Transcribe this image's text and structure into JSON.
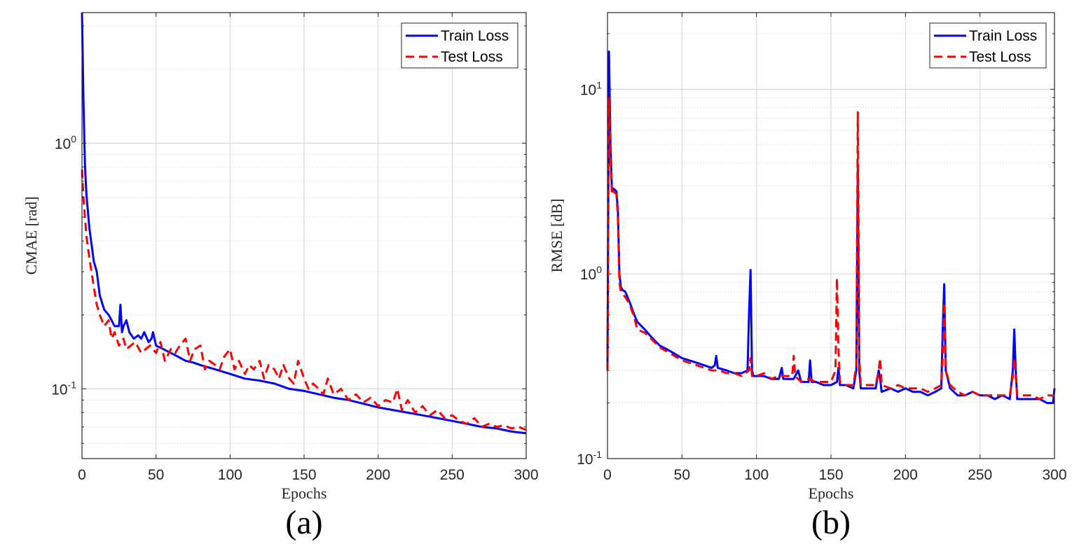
{
  "chart_data": [
    {
      "type": "line",
      "panel_label": "(a)",
      "xlabel": "Epochs",
      "ylabel": "CMAE [rad]",
      "xlim": [
        0,
        300
      ],
      "ylim": [
        0.052,
        3.4
      ],
      "yscale": "log",
      "grid": true,
      "legend_position": "top-right",
      "xticks": [
        0,
        50,
        100,
        150,
        200,
        250,
        300
      ],
      "yticks": [
        {
          "value": 1,
          "base": "10",
          "exp": "0"
        },
        {
          "value": 0.1,
          "base": "10",
          "exp": "-1"
        }
      ],
      "series": [
        {
          "name": "Train Loss",
          "color": "#0000ff",
          "style": "solid",
          "x": [
            0,
            1,
            2,
            3,
            5,
            8,
            10,
            12,
            15,
            18,
            20,
            22,
            25,
            26,
            27,
            28,
            30,
            32,
            35,
            38,
            40,
            42,
            45,
            47,
            48,
            50,
            55,
            60,
            65,
            70,
            75,
            80,
            90,
            100,
            110,
            120,
            130,
            140,
            150,
            160,
            170,
            180,
            190,
            200,
            210,
            220,
            230,
            240,
            250,
            260,
            270,
            280,
            290,
            300
          ],
          "values": [
            3.4,
            1.5,
            0.82,
            0.62,
            0.45,
            0.33,
            0.3,
            0.24,
            0.21,
            0.2,
            0.19,
            0.18,
            0.18,
            0.22,
            0.17,
            0.18,
            0.19,
            0.17,
            0.16,
            0.165,
            0.16,
            0.17,
            0.155,
            0.16,
            0.17,
            0.15,
            0.145,
            0.14,
            0.135,
            0.13,
            0.128,
            0.125,
            0.12,
            0.115,
            0.11,
            0.108,
            0.105,
            0.1,
            0.098,
            0.095,
            0.092,
            0.09,
            0.087,
            0.084,
            0.082,
            0.08,
            0.078,
            0.076,
            0.074,
            0.072,
            0.07,
            0.069,
            0.067,
            0.066
          ]
        },
        {
          "name": "Test Loss",
          "color": "#ff0000",
          "style": "dashed",
          "x": [
            0,
            1,
            2,
            3,
            5,
            8,
            10,
            12,
            15,
            18,
            20,
            22,
            25,
            28,
            30,
            33,
            36,
            40,
            43,
            46,
            50,
            53,
            56,
            60,
            63,
            66,
            70,
            73,
            76,
            80,
            83,
            86,
            90,
            93,
            96,
            100,
            103,
            106,
            110,
            113,
            116,
            120,
            123,
            126,
            130,
            133,
            136,
            140,
            143,
            146,
            150,
            153,
            156,
            160,
            163,
            166,
            170,
            175,
            180,
            185,
            190,
            195,
            200,
            205,
            210,
            213,
            216,
            220,
            225,
            230,
            235,
            240,
            245,
            250,
            255,
            260,
            265,
            270,
            275,
            280,
            285,
            290,
            295,
            300
          ],
          "values": [
            0.78,
            0.6,
            0.5,
            0.42,
            0.34,
            0.26,
            0.22,
            0.2,
            0.18,
            0.19,
            0.16,
            0.17,
            0.15,
            0.16,
            0.145,
            0.15,
            0.155,
            0.14,
            0.145,
            0.15,
            0.14,
            0.155,
            0.13,
            0.145,
            0.14,
            0.15,
            0.16,
            0.13,
            0.145,
            0.15,
            0.12,
            0.13,
            0.125,
            0.12,
            0.135,
            0.145,
            0.12,
            0.13,
            0.115,
            0.125,
            0.12,
            0.13,
            0.11,
            0.125,
            0.12,
            0.11,
            0.125,
            0.11,
            0.105,
            0.13,
            0.11,
            0.1,
            0.105,
            0.1,
            0.095,
            0.11,
            0.095,
            0.1,
            0.09,
            0.095,
            0.088,
            0.092,
            0.085,
            0.09,
            0.088,
            0.1,
            0.082,
            0.09,
            0.08,
            0.085,
            0.078,
            0.082,
            0.076,
            0.078,
            0.074,
            0.072,
            0.076,
            0.07,
            0.072,
            0.07,
            0.071,
            0.069,
            0.07,
            0.068
          ]
        }
      ]
    },
    {
      "type": "line",
      "panel_label": "(b)",
      "xlabel": "Epochs",
      "ylabel": "RMSE [dB]",
      "xlim": [
        0,
        300
      ],
      "ylim": [
        0.1,
        26
      ],
      "yscale": "log",
      "grid": true,
      "legend_position": "top-right",
      "xticks": [
        0,
        50,
        100,
        150,
        200,
        250,
        300
      ],
      "yticks": [
        {
          "value": 10,
          "base": "10",
          "exp": "1"
        },
        {
          "value": 1,
          "base": "10",
          "exp": "0"
        },
        {
          "value": 0.1,
          "base": "10",
          "exp": "-1"
        }
      ],
      "series": [
        {
          "name": "Train Loss",
          "color": "#0000ff",
          "style": "solid",
          "x": [
            0,
            1,
            2,
            3,
            4,
            6,
            7,
            8,
            9,
            10,
            12,
            15,
            18,
            20,
            25,
            30,
            35,
            40,
            45,
            50,
            55,
            60,
            65,
            70,
            72,
            73,
            74,
            80,
            85,
            90,
            94,
            95,
            96,
            97,
            98,
            100,
            105,
            110,
            115,
            117,
            118,
            120,
            125,
            128,
            130,
            135,
            136,
            137,
            140,
            145,
            150,
            154,
            155,
            156,
            160,
            165,
            167,
            168,
            169,
            170,
            175,
            180,
            182,
            183,
            184,
            190,
            195,
            200,
            205,
            210,
            215,
            220,
            224,
            225,
            226,
            227,
            230,
            235,
            240,
            245,
            250,
            255,
            260,
            265,
            270,
            272,
            273,
            274,
            275,
            280,
            285,
            290,
            295,
            299,
            300
          ],
          "values": [
            0.3,
            16,
            5,
            2.8,
            2.9,
            2.8,
            2.2,
            1.0,
            0.85,
            0.82,
            0.8,
            0.7,
            0.6,
            0.55,
            0.5,
            0.45,
            0.41,
            0.39,
            0.37,
            0.35,
            0.34,
            0.33,
            0.32,
            0.31,
            0.32,
            0.36,
            0.31,
            0.3,
            0.29,
            0.29,
            0.3,
            0.6,
            1.05,
            0.3,
            0.28,
            0.28,
            0.28,
            0.27,
            0.27,
            0.31,
            0.27,
            0.27,
            0.27,
            0.3,
            0.26,
            0.26,
            0.34,
            0.26,
            0.26,
            0.25,
            0.25,
            0.26,
            0.31,
            0.25,
            0.25,
            0.24,
            0.3,
            3.8,
            0.3,
            0.24,
            0.24,
            0.24,
            0.3,
            0.27,
            0.23,
            0.24,
            0.23,
            0.24,
            0.23,
            0.23,
            0.22,
            0.23,
            0.24,
            0.5,
            0.88,
            0.3,
            0.24,
            0.22,
            0.22,
            0.23,
            0.22,
            0.22,
            0.21,
            0.22,
            0.21,
            0.3,
            0.5,
            0.3,
            0.21,
            0.21,
            0.21,
            0.21,
            0.2,
            0.2,
            0.24
          ]
        },
        {
          "name": "Test Loss",
          "color": "#ff0000",
          "style": "dashed",
          "x": [
            0,
            1,
            2,
            3,
            4,
            6,
            7,
            8,
            9,
            10,
            12,
            15,
            18,
            20,
            25,
            30,
            35,
            40,
            45,
            50,
            55,
            60,
            65,
            70,
            75,
            80,
            85,
            90,
            95,
            96,
            97,
            100,
            105,
            110,
            115,
            120,
            124,
            125,
            126,
            130,
            135,
            140,
            145,
            150,
            153,
            154,
            155,
            156,
            160,
            165,
            167,
            168,
            169,
            170,
            175,
            180,
            182,
            183,
            184,
            190,
            195,
            200,
            205,
            210,
            215,
            220,
            224,
            225,
            226,
            227,
            230,
            235,
            240,
            245,
            250,
            255,
            260,
            265,
            270,
            272,
            273,
            274,
            275,
            280,
            285,
            290,
            295,
            300
          ],
          "values": [
            0.3,
            9,
            4,
            2.7,
            2.8,
            2.7,
            2.0,
            0.9,
            0.8,
            0.78,
            0.75,
            0.68,
            0.58,
            0.5,
            0.48,
            0.44,
            0.4,
            0.38,
            0.36,
            0.34,
            0.33,
            0.32,
            0.31,
            0.3,
            0.3,
            0.29,
            0.29,
            0.28,
            0.3,
            0.35,
            0.28,
            0.28,
            0.29,
            0.27,
            0.28,
            0.28,
            0.28,
            0.36,
            0.28,
            0.26,
            0.27,
            0.26,
            0.26,
            0.26,
            0.3,
            0.95,
            0.4,
            0.26,
            0.25,
            0.25,
            0.32,
            7.5,
            0.35,
            0.25,
            0.25,
            0.25,
            0.3,
            0.35,
            0.25,
            0.24,
            0.25,
            0.24,
            0.24,
            0.24,
            0.23,
            0.24,
            0.25,
            0.35,
            0.7,
            0.3,
            0.25,
            0.23,
            0.22,
            0.23,
            0.22,
            0.22,
            0.22,
            0.22,
            0.22,
            0.28,
            0.35,
            0.28,
            0.22,
            0.22,
            0.22,
            0.21,
            0.22,
            0.22
          ]
        }
      ]
    }
  ]
}
